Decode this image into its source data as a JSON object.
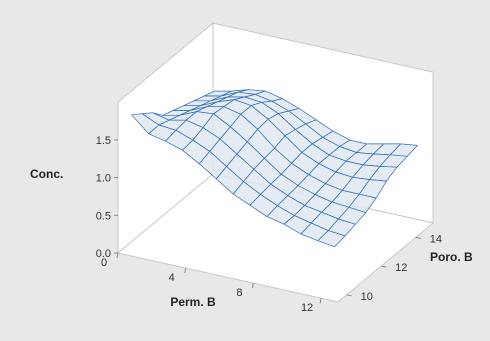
{
  "chart_data": {
    "type": "surface",
    "xlabel": "Perm. B",
    "ylabel": "Poro. B",
    "zlabel": "Conc.",
    "x_ticks": [
      "0",
      "4",
      "8",
      "12"
    ],
    "y_ticks": [
      "10",
      "12",
      "14"
    ],
    "z_ticks": [
      "0.0",
      "0.5",
      "1.0",
      "1.5"
    ],
    "xlim": [
      0,
      13
    ],
    "ylim": [
      9.5,
      15
    ],
    "zlim": [
      0,
      2.0
    ],
    "grid": false,
    "colors": {
      "background": "#e8e8e8",
      "panel": "#ffffff",
      "mesh": "#2a6db5",
      "fill": "#dfe7f1"
    },
    "surface_x": [
      0.5,
      1.5,
      2.5,
      3.5,
      4.5,
      5.5,
      6.5,
      7.5,
      8.5,
      9.5,
      10.5,
      11.5,
      12.5
    ],
    "surface_y": [
      9.8,
      10.4,
      11.0,
      11.6,
      12.2,
      12.8,
      13.4,
      14.0,
      14.6
    ],
    "surface_z": [
      [
        1.8,
        1.6,
        1.55,
        1.48,
        1.35,
        1.2,
        1.05,
        0.95,
        0.85,
        0.8,
        0.72,
        0.68,
        0.65
      ],
      [
        1.7,
        1.6,
        1.58,
        1.5,
        1.4,
        1.25,
        1.1,
        0.98,
        0.88,
        0.8,
        0.75,
        0.7,
        0.68
      ],
      [
        1.6,
        1.55,
        1.6,
        1.55,
        1.45,
        1.3,
        1.15,
        1.0,
        0.9,
        0.82,
        0.78,
        0.74,
        0.72
      ],
      [
        1.45,
        1.5,
        1.6,
        1.62,
        1.5,
        1.35,
        1.18,
        1.02,
        0.92,
        0.85,
        0.8,
        0.78,
        0.76
      ],
      [
        1.4,
        1.45,
        1.55,
        1.6,
        1.55,
        1.4,
        1.2,
        1.05,
        0.95,
        0.88,
        0.84,
        0.84,
        0.84
      ],
      [
        1.35,
        1.4,
        1.5,
        1.58,
        1.55,
        1.42,
        1.25,
        1.08,
        0.98,
        0.92,
        0.9,
        0.92,
        0.95
      ],
      [
        1.3,
        1.35,
        1.45,
        1.5,
        1.48,
        1.38,
        1.22,
        1.08,
        0.98,
        0.95,
        0.95,
        0.98,
        1.02
      ],
      [
        1.25,
        1.3,
        1.4,
        1.42,
        1.38,
        1.3,
        1.18,
        1.05,
        0.98,
        0.95,
        0.98,
        1.02,
        1.05
      ],
      [
        1.2,
        1.25,
        1.32,
        1.35,
        1.3,
        1.22,
        1.12,
        1.02,
        0.95,
        0.95,
        1.0,
        1.05,
        1.08
      ]
    ]
  }
}
